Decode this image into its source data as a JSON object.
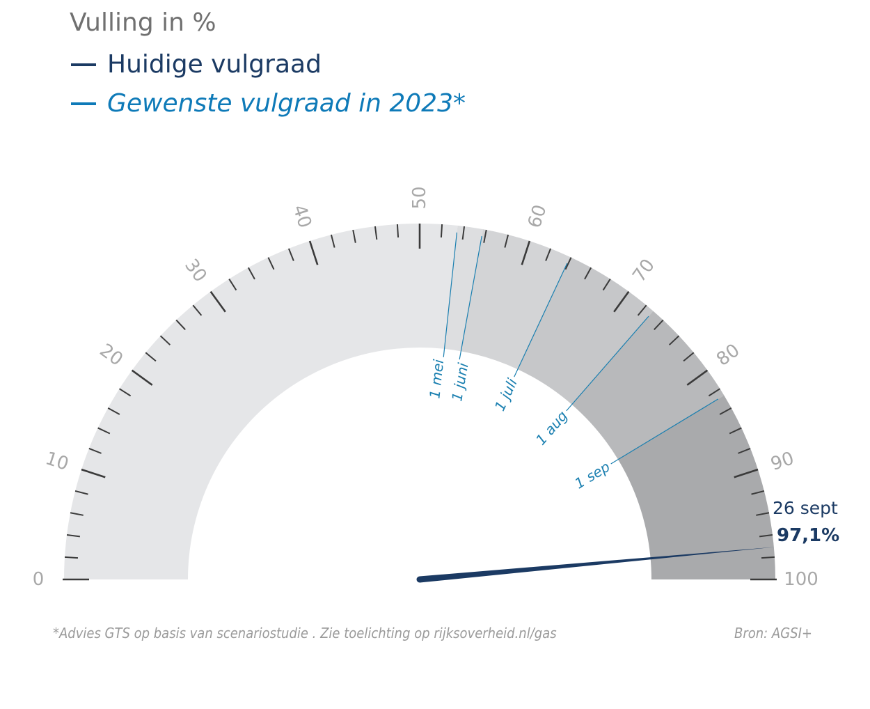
{
  "chart_data": {
    "type": "gauge",
    "title": "Vulling in %",
    "range": [
      0,
      100
    ],
    "tick_labels": [
      "0",
      "10",
      "20",
      "30",
      "40",
      "50",
      "60",
      "70",
      "80",
      "90",
      "100"
    ],
    "minor_tick_step": 2,
    "major_tick_step": 10,
    "series": [
      {
        "name": "Huidige vulgraad",
        "color": "#1b3a63",
        "value": 97.1,
        "date": "26 sept",
        "value_label": "97,1%"
      },
      {
        "name": "Gewenste vulgraad in 2023*",
        "color": "#0e7ab8",
        "targets": [
          {
            "label": "1 mei",
            "value": 53.4
          },
          {
            "label": "1 juni",
            "value": 55.7
          },
          {
            "label": "1 juli",
            "value": 63.9
          },
          {
            "label": "1 aug",
            "value": 72.8
          },
          {
            "label": "1 sep",
            "value": 82.7
          }
        ]
      }
    ],
    "band_colors": [
      "#e5e6e8",
      "#dddee0",
      "#d3d4d6",
      "#c6c7c9",
      "#b8b9bb",
      "#a9aaac"
    ]
  },
  "footnote": "*Advies GTS op basis van scenariostudie . Zie toelichting op rijksoverheid.nl/gas",
  "source": "Bron: AGSI+"
}
